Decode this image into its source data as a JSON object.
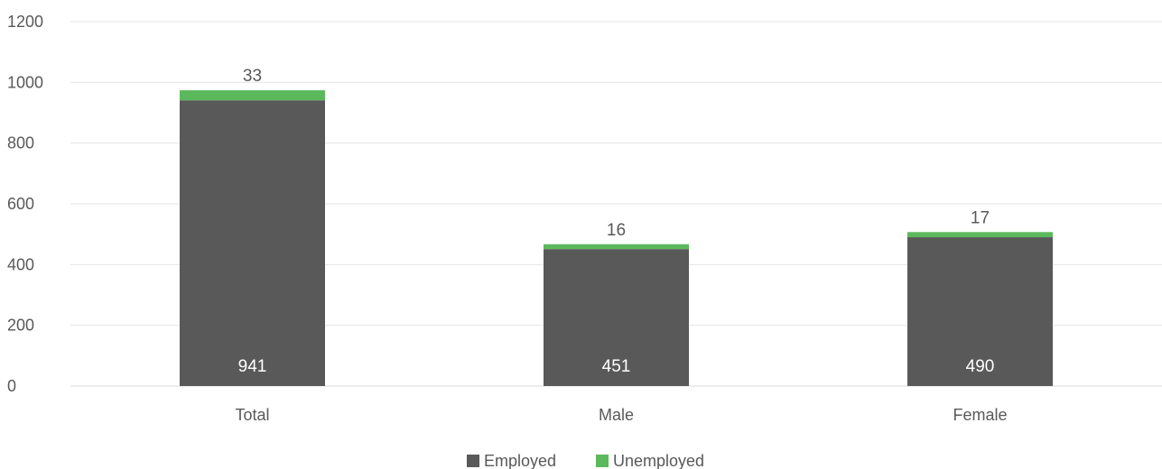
{
  "chart_data": {
    "type": "bar",
    "stacked": true,
    "categories": [
      "Total",
      "Male",
      "Female"
    ],
    "series": [
      {
        "name": "Employed",
        "values": [
          941,
          451,
          490
        ],
        "color": "#595959"
      },
      {
        "name": "Unemployed",
        "values": [
          33,
          16,
          17
        ],
        "color": "#5cb85c"
      }
    ],
    "ylim": [
      0,
      1200
    ],
    "yticks": [
      "0",
      "200",
      "400",
      "600",
      "800",
      "1000",
      "1200"
    ],
    "grid": true,
    "legend": "bottom"
  }
}
